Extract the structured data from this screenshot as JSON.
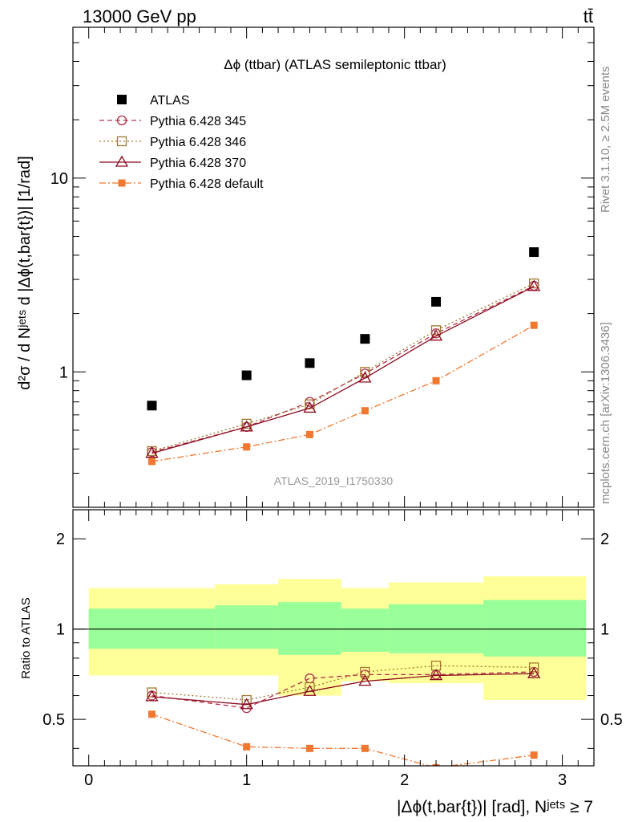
{
  "header": {
    "energy_label": "13000 GeV pp",
    "process_label": "tt̄"
  },
  "side_labels": {
    "rivet": "Rivet 3.1.10, ≥ 2.5M events",
    "mcplots": "mcplots.cern.ch [arXiv:1306.3436]"
  },
  "colors": {
    "data": "#000000",
    "pythia345": "#b0304a",
    "pythia346": "#a07830",
    "pythia370": "#8b0a1e",
    "default": "#f07830",
    "band_inner": "#99ff99",
    "band_outer": "#ffff99"
  },
  "chart_data": [
    {
      "type": "scatter",
      "panel": "main",
      "title": "Δϕ (ttbar) (ATLAS semileptonic ttbar)",
      "analysis_label": "ATLAS_2019_I1750330",
      "ylabel": "d²σ / d Nʲᵉᵗˢ d |Δϕ(t,bar{t})| [1/rad]",
      "yscale": "log",
      "xlim": [
        -0.1,
        3.2
      ],
      "ylim": [
        0.2,
        60
      ],
      "y_tick_labels": [
        "1",
        "10"
      ],
      "x": [
        0.4,
        1.0,
        1.4,
        1.75,
        2.2,
        2.82
      ],
      "legend": [
        {
          "key": "data",
          "label": "ATLAS"
        },
        {
          "key": "p345",
          "label": "Pythia 6.428 345"
        },
        {
          "key": "p346",
          "label": "Pythia 6.428 346"
        },
        {
          "key": "p370",
          "label": "Pythia 6.428 370"
        },
        {
          "key": "pdef",
          "label": "Pythia 6.428 default"
        }
      ],
      "series": [
        {
          "key": "data",
          "name": "ATLAS",
          "values": [
            0.67,
            0.96,
            1.11,
            1.48,
            2.3,
            4.15
          ]
        },
        {
          "key": "p345",
          "name": "Pythia 6.428 345",
          "values": [
            0.385,
            0.52,
            0.7,
            0.98,
            1.58,
            2.78
          ]
        },
        {
          "key": "p346",
          "name": "Pythia 6.428 346",
          "values": [
            0.39,
            0.54,
            0.68,
            1.0,
            1.64,
            2.86
          ]
        },
        {
          "key": "p370",
          "name": "Pythia 6.428 370",
          "values": [
            0.38,
            0.52,
            0.65,
            0.93,
            1.53,
            2.76
          ]
        },
        {
          "key": "pdef",
          "name": "Pythia 6.428 default",
          "values": [
            0.345,
            0.41,
            0.475,
            0.63,
            0.9,
            1.74
          ]
        }
      ]
    },
    {
      "type": "line",
      "panel": "ratio",
      "ylabel": "Ratio to ATLAS",
      "xlabel": "|Δϕ(t,bar{t})| [rad], Nʲᵉᵗˢ ≥ 7",
      "xlim": [
        -0.1,
        3.2
      ],
      "ylim": [
        0.35,
        2.5
      ],
      "x_tick_labels": [
        "0",
        "1",
        "2",
        "3"
      ],
      "y_tick_labels": [
        "0.5",
        "1",
        "2"
      ],
      "x": [
        0.4,
        1.0,
        1.4,
        1.75,
        2.2,
        2.82
      ],
      "bands": [
        {
          "x_range": [
            0.0,
            0.8
          ],
          "outer": [
            0.7,
            1.37
          ],
          "inner": [
            0.86,
            1.17
          ]
        },
        {
          "x_range": [
            0.8,
            1.2
          ],
          "outer": [
            0.7,
            1.41
          ],
          "inner": [
            0.86,
            1.2
          ]
        },
        {
          "x_range": [
            1.2,
            1.6
          ],
          "outer": [
            0.6,
            1.47
          ],
          "inner": [
            0.82,
            1.23
          ]
        },
        {
          "x_range": [
            1.6,
            1.9
          ],
          "outer": [
            0.67,
            1.37
          ],
          "inner": [
            0.84,
            1.17
          ]
        },
        {
          "x_range": [
            1.9,
            2.5
          ],
          "outer": [
            0.66,
            1.43
          ],
          "inner": [
            0.83,
            1.21
          ]
        },
        {
          "x_range": [
            2.5,
            3.15
          ],
          "outer": [
            0.58,
            1.5
          ],
          "inner": [
            0.81,
            1.25
          ]
        }
      ],
      "series": [
        {
          "key": "p345",
          "name": "Pythia 6.428 345",
          "values": [
            0.6,
            0.545,
            0.685,
            0.705,
            0.705,
            0.72
          ]
        },
        {
          "key": "p346",
          "name": "Pythia 6.428 346",
          "values": [
            0.615,
            0.58,
            0.64,
            0.72,
            0.755,
            0.745
          ]
        },
        {
          "key": "p370",
          "name": "Pythia 6.428 370",
          "values": [
            0.595,
            0.56,
            0.62,
            0.67,
            0.7,
            0.71
          ]
        },
        {
          "key": "pdef",
          "name": "Pythia 6.428 default",
          "values": [
            0.52,
            0.405,
            0.4,
            0.4,
            0.345,
            0.38
          ]
        }
      ]
    }
  ]
}
